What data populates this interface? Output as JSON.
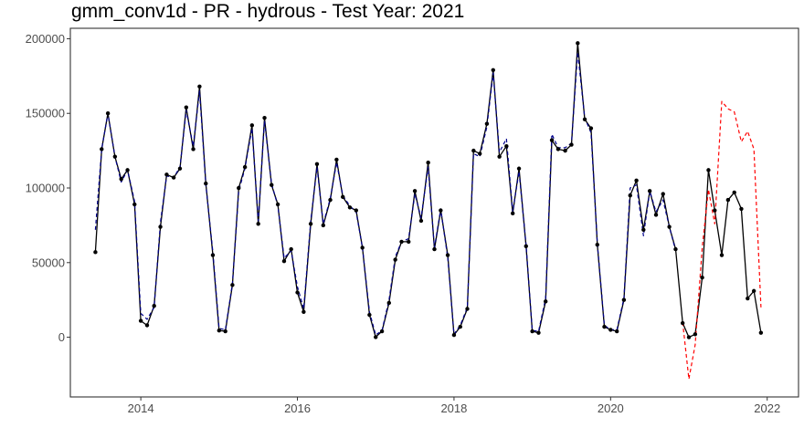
{
  "chart_data": {
    "type": "line",
    "title": "gmm_conv1d - PR - hydrous - Test Year: 2021",
    "xlabel": "",
    "ylabel": "",
    "xlim": [
      2013.1,
      2022.4
    ],
    "ylim": [
      -40000,
      207000
    ],
    "x_ticks": [
      2014,
      2016,
      2018,
      2020,
      2022
    ],
    "x_tick_labels": [
      "2014",
      "2016",
      "2018",
      "2020",
      "2022"
    ],
    "y_ticks": [
      0,
      50000,
      100000,
      150000,
      200000
    ],
    "y_tick_labels": [
      "0",
      "50000",
      "100000",
      "150000",
      "200000"
    ],
    "grid": false,
    "legend": "none",
    "colors": {
      "actual": "#000000",
      "fitted": "#00008b",
      "forecast": "#ff0000"
    },
    "x": [
      2013.42,
      2013.5,
      2013.58,
      2013.67,
      2013.75,
      2013.83,
      2013.92,
      2014.0,
      2014.08,
      2014.17,
      2014.25,
      2014.33,
      2014.42,
      2014.5,
      2014.58,
      2014.67,
      2014.75,
      2014.83,
      2014.92,
      2015.0,
      2015.08,
      2015.17,
      2015.25,
      2015.33,
      2015.42,
      2015.5,
      2015.58,
      2015.67,
      2015.75,
      2015.83,
      2015.92,
      2016.0,
      2016.08,
      2016.17,
      2016.25,
      2016.33,
      2016.42,
      2016.5,
      2016.58,
      2016.67,
      2016.75,
      2016.83,
      2016.92,
      2017.0,
      2017.08,
      2017.17,
      2017.25,
      2017.33,
      2017.42,
      2017.5,
      2017.58,
      2017.67,
      2017.75,
      2017.83,
      2017.92,
      2018.0,
      2018.08,
      2018.17,
      2018.25,
      2018.33,
      2018.42,
      2018.5,
      2018.58,
      2018.67,
      2018.75,
      2018.83,
      2018.92,
      2019.0,
      2019.08,
      2019.17,
      2019.25,
      2019.33,
      2019.42,
      2019.5,
      2019.58,
      2019.67,
      2019.75,
      2019.83,
      2019.92,
      2020.0,
      2020.08,
      2020.17,
      2020.25,
      2020.33,
      2020.42,
      2020.5,
      2020.58,
      2020.67,
      2020.75,
      2020.83,
      2020.92,
      2021.0,
      2021.08,
      2021.17,
      2021.25,
      2021.33,
      2021.42,
      2021.5,
      2021.58,
      2021.67,
      2021.75,
      2021.83,
      2021.92
    ],
    "series": [
      {
        "key": "actual",
        "style": "solid-with-points",
        "values": [
          57000,
          126000,
          150000,
          121000,
          106000,
          112000,
          89000,
          11000,
          8000,
          21000,
          74000,
          109000,
          107000,
          113000,
          154000,
          126000,
          168000,
          103000,
          55000,
          4500,
          4000,
          35000,
          100000,
          114000,
          142000,
          76000,
          147000,
          102000,
          89000,
          51000,
          59000,
          30000,
          17000,
          76000,
          116000,
          75000,
          92000,
          119000,
          94000,
          87000,
          85000,
          60000,
          15000,
          100,
          4000,
          23000,
          52000,
          64000,
          64000,
          98000,
          78000,
          117000,
          59000,
          85000,
          55000,
          1500,
          7000,
          19000,
          125000,
          123000,
          143000,
          179000,
          121000,
          128000,
          83000,
          113000,
          61000,
          4000,
          3000,
          24000,
          132000,
          126000,
          125000,
          129000,
          197000,
          146000,
          140000,
          62000,
          7000,
          5000,
          4000,
          25000,
          95000,
          105000,
          72000,
          98000,
          82000,
          96000,
          74000,
          59000,
          9500,
          0,
          2000,
          40000,
          112000,
          85000,
          55000,
          92000,
          97000,
          86000,
          26000,
          31000,
          3000
        ]
      },
      {
        "key": "fitted",
        "style": "dashed",
        "values": [
          72000,
          126000,
          150000,
          121000,
          104000,
          112000,
          91000,
          16000,
          12000,
          20000,
          77000,
          108000,
          107000,
          114000,
          152000,
          128000,
          165000,
          102000,
          57000,
          6000,
          5000,
          36000,
          98000,
          113000,
          140000,
          78000,
          145000,
          103000,
          88000,
          53000,
          58000,
          34000,
          19000,
          78000,
          114000,
          76000,
          93000,
          117000,
          95000,
          88000,
          84000,
          60000,
          17000,
          1500,
          4500,
          25000,
          54000,
          64000,
          66000,
          96000,
          80000,
          114000,
          60000,
          86000,
          53000,
          2000,
          8000,
          20000,
          123000,
          121000,
          141000,
          177000,
          124000,
          133000,
          84000,
          111000,
          62000,
          4500,
          4000,
          26000,
          136000,
          127000,
          127000,
          130000,
          191000,
          147000,
          137000,
          63000,
          8000,
          5000,
          5000,
          26000,
          100000,
          102000,
          68000,
          98000,
          84000,
          92000,
          74000,
          58000,
          null,
          null,
          null,
          null,
          null,
          null,
          null,
          null,
          null,
          null,
          null,
          null,
          null
        ]
      },
      {
        "key": "forecast",
        "style": "dashed",
        "values": [
          null,
          null,
          null,
          null,
          null,
          null,
          null,
          null,
          null,
          null,
          null,
          null,
          null,
          null,
          null,
          null,
          null,
          null,
          null,
          null,
          null,
          null,
          null,
          null,
          null,
          null,
          null,
          null,
          null,
          null,
          null,
          null,
          null,
          null,
          null,
          null,
          null,
          null,
          null,
          null,
          null,
          null,
          null,
          null,
          null,
          null,
          null,
          null,
          null,
          null,
          null,
          null,
          null,
          null,
          null,
          null,
          null,
          null,
          null,
          null,
          null,
          null,
          null,
          null,
          null,
          null,
          null,
          null,
          null,
          null,
          null,
          null,
          null,
          null,
          null,
          null,
          null,
          null,
          null,
          null,
          null,
          null,
          null,
          null,
          null,
          null,
          null,
          null,
          null,
          null,
          10000,
          -28000,
          -5000,
          60000,
          99000,
          76000,
          158000,
          153000,
          151000,
          131000,
          138000,
          126000,
          20000
        ]
      }
    ]
  }
}
